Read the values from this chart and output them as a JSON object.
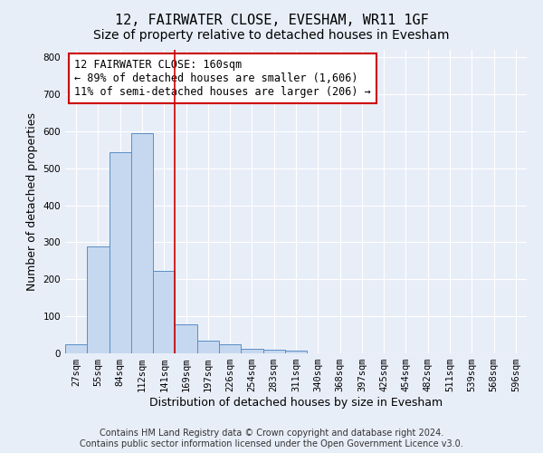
{
  "title": "12, FAIRWATER CLOSE, EVESHAM, WR11 1GF",
  "subtitle": "Size of property relative to detached houses in Evesham",
  "xlabel": "Distribution of detached houses by size in Evesham",
  "ylabel": "Number of detached properties",
  "categories": [
    "27sqm",
    "55sqm",
    "84sqm",
    "112sqm",
    "141sqm",
    "169sqm",
    "197sqm",
    "226sqm",
    "254sqm",
    "283sqm",
    "311sqm",
    "340sqm",
    "368sqm",
    "397sqm",
    "425sqm",
    "454sqm",
    "482sqm",
    "511sqm",
    "539sqm",
    "568sqm",
    "596sqm"
  ],
  "values": [
    25,
    288,
    543,
    595,
    222,
    78,
    35,
    25,
    12,
    10,
    8,
    0,
    0,
    0,
    0,
    0,
    0,
    0,
    0,
    0,
    0
  ],
  "bar_color": "#c5d8f0",
  "bar_edge_color": "#5b8ec4",
  "property_line_x": 4.5,
  "annotation_text": "12 FAIRWATER CLOSE: 160sqm\n← 89% of detached houses are smaller (1,606)\n11% of semi-detached houses are larger (206) →",
  "annotation_box_color": "white",
  "annotation_border_color": "#cc0000",
  "property_line_color": "#cc0000",
  "ylim": [
    0,
    820
  ],
  "yticks": [
    0,
    100,
    200,
    300,
    400,
    500,
    600,
    700,
    800
  ],
  "bg_color": "#e8eef8",
  "grid_color": "white",
  "footer": "Contains HM Land Registry data © Crown copyright and database right 2024.\nContains public sector information licensed under the Open Government Licence v3.0.",
  "title_fontsize": 11,
  "subtitle_fontsize": 10,
  "axis_label_fontsize": 9,
  "tick_fontsize": 7.5,
  "annotation_fontsize": 8.5,
  "footer_fontsize": 7
}
